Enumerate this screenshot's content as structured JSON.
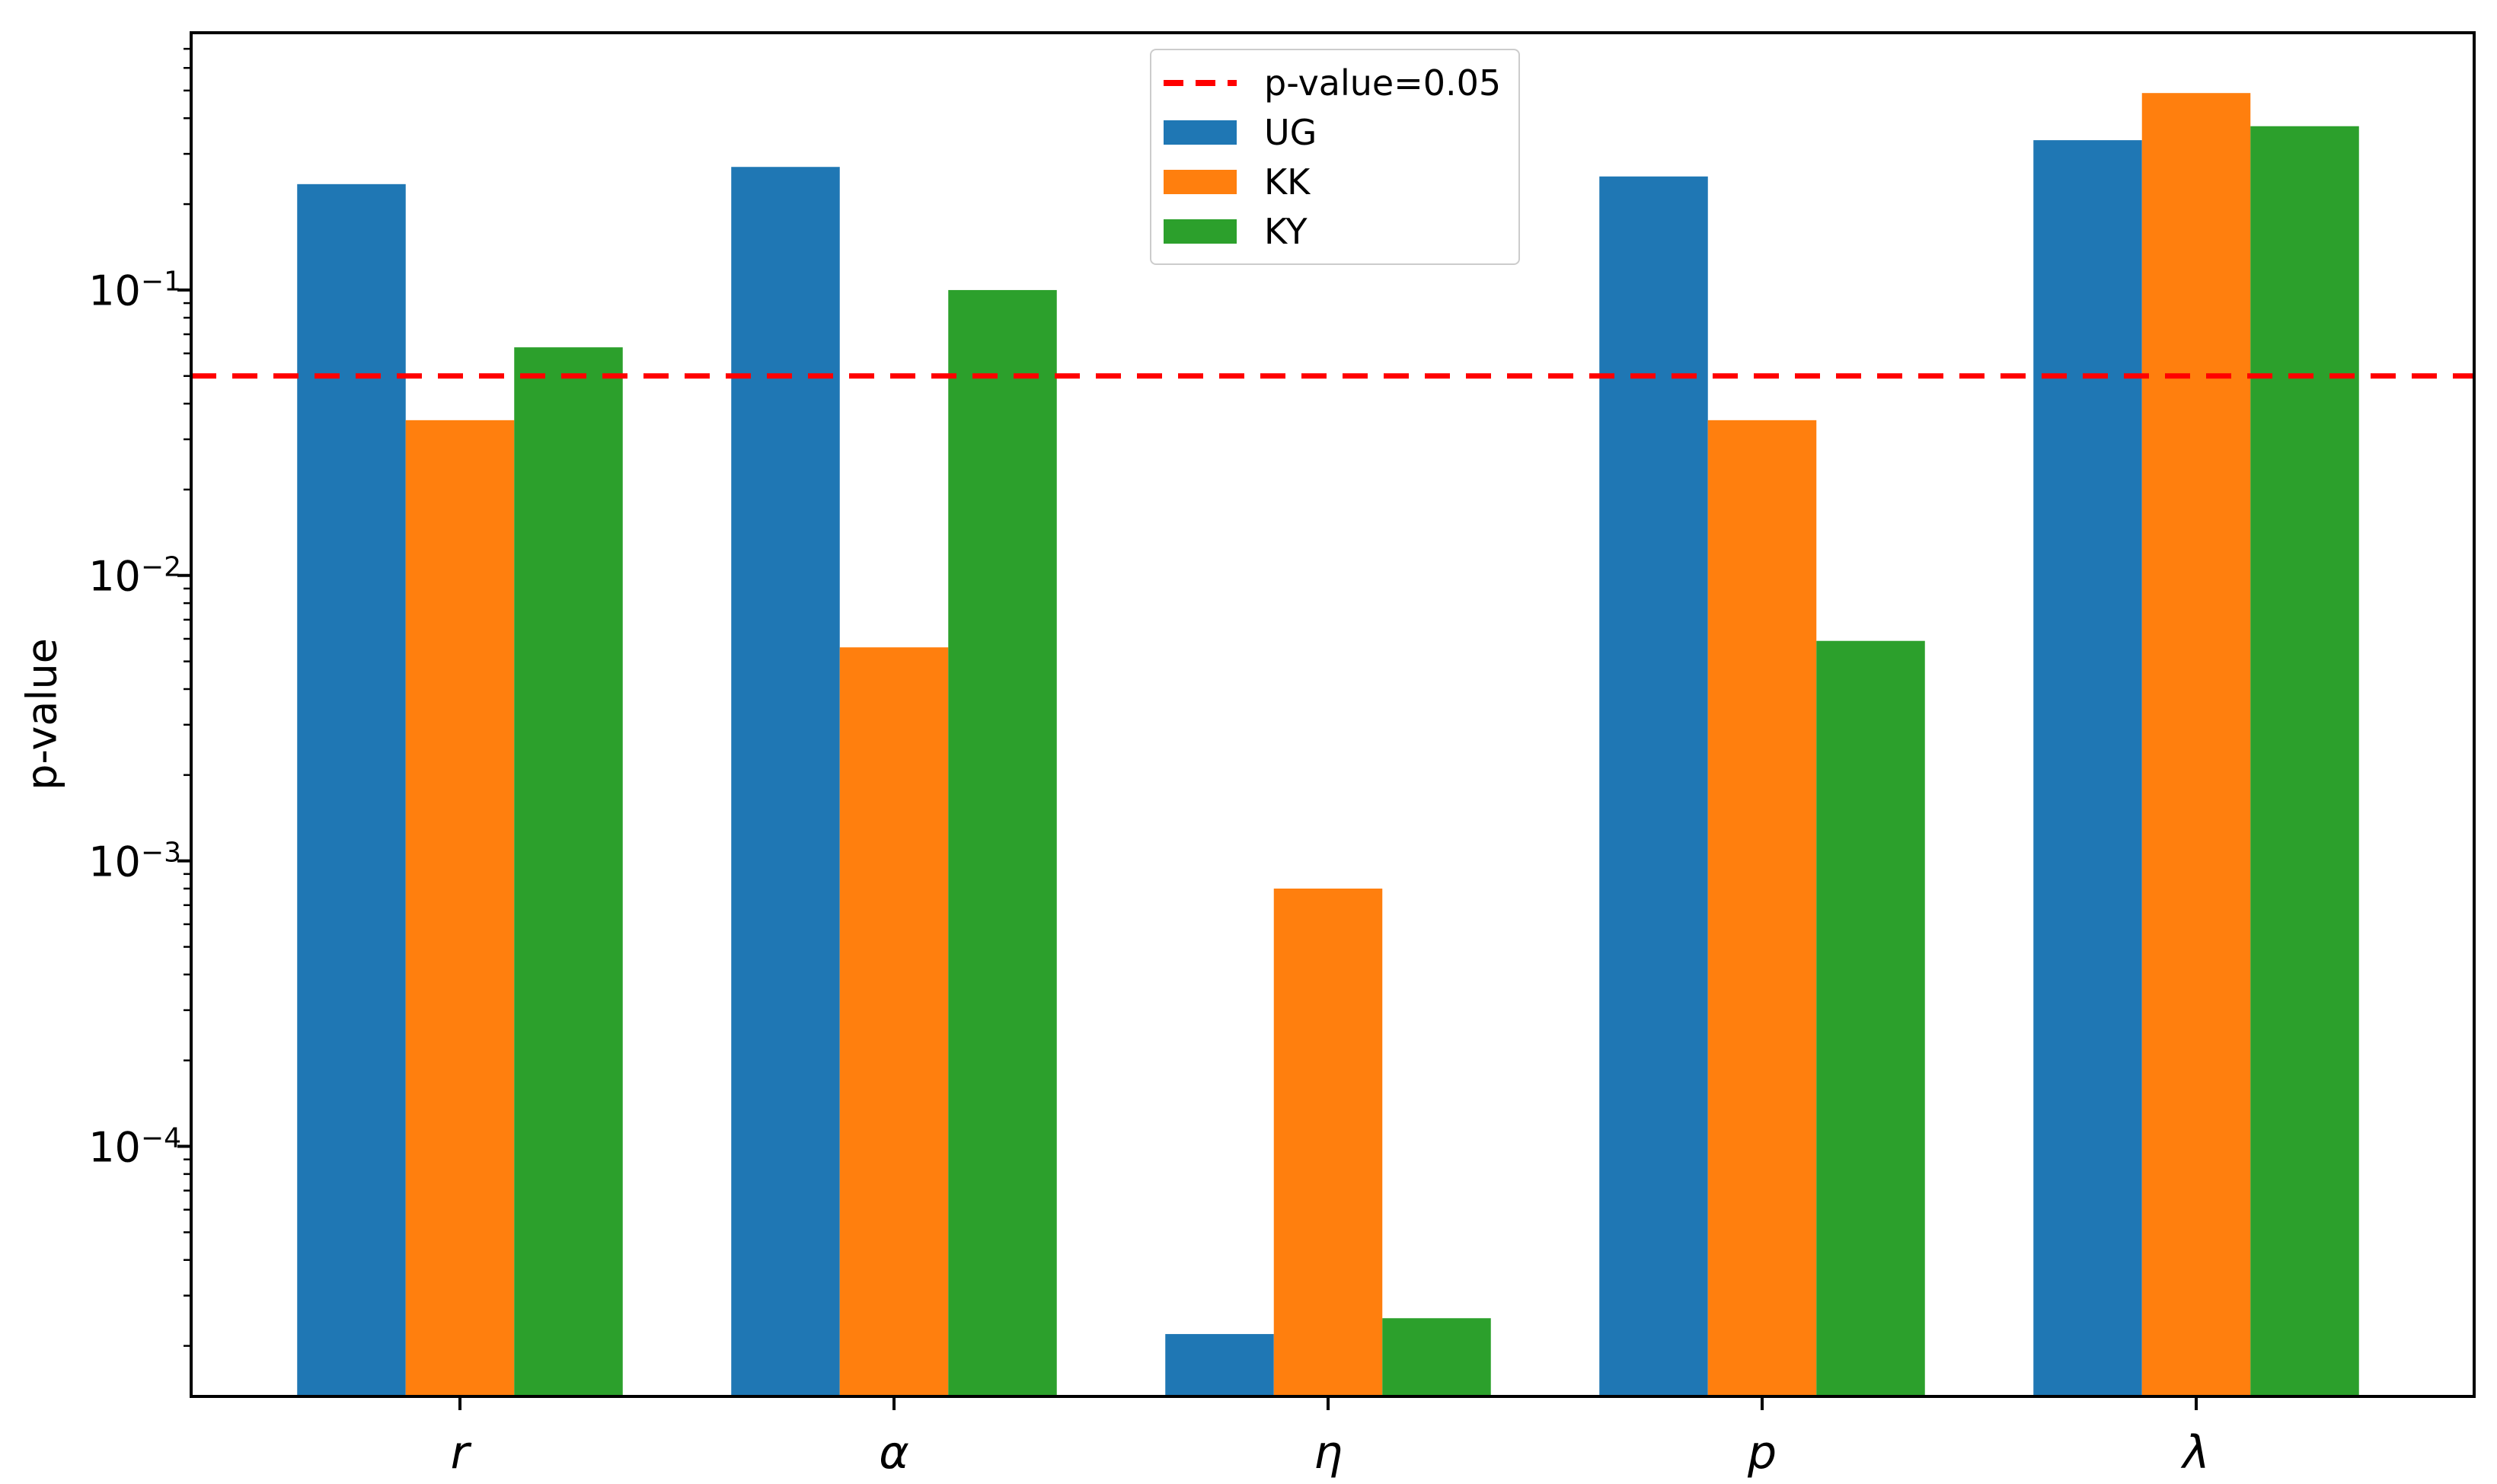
{
  "chart_data": {
    "type": "bar",
    "categories": [
      "r",
      "α",
      "η",
      "p",
      "λ"
    ],
    "series": [
      {
        "name": "UG",
        "color": "#1f77b4",
        "values": [
          0.235,
          0.27,
          2.2e-05,
          0.25,
          0.335
        ]
      },
      {
        "name": "KK",
        "color": "#ff7f0e",
        "values": [
          0.035,
          0.0056,
          0.0008,
          0.035,
          0.49
        ]
      },
      {
        "name": "KY",
        "color": "#2ca02c",
        "values": [
          0.063,
          0.1,
          2.5e-05,
          0.0059,
          0.375
        ]
      }
    ],
    "reference_line": {
      "label": "p-value=0.05",
      "value": 0.05,
      "color": "#ff0000",
      "style": "dashed"
    },
    "title": "",
    "xlabel": "",
    "ylabel": "p-value",
    "yscale": "log",
    "ylim": [
      1.33e-05,
      0.797
    ],
    "ytick_labels": [
      "10^−1",
      "10^−2",
      "10^−3",
      "10^−4"
    ],
    "ytick_values": [
      0.1,
      0.01,
      0.001,
      0.0001
    ],
    "grid": "off",
    "legend_position": "upper center",
    "axis_color": "#000000",
    "background_color": "#ffffff"
  }
}
